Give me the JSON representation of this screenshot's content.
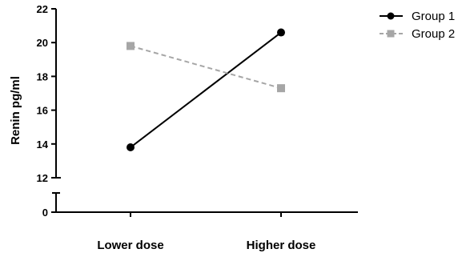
{
  "chart_data": {
    "type": "line",
    "categories": [
      "Lower dose",
      "Higher dose"
    ],
    "series": [
      {
        "name": "Group 1",
        "values": [
          13.8,
          20.6
        ],
        "color": "#000000",
        "line_style": "solid",
        "marker": "circle"
      },
      {
        "name": "Group 2",
        "values": [
          19.8,
          17.3
        ],
        "color": "#a6a6a6",
        "line_style": "dashed",
        "marker": "square"
      }
    ],
    "ylabel": "Renin pg/ml",
    "xlabel": "",
    "title": "",
    "yaxis": {
      "broken": true,
      "lower_segment": {
        "range": [
          0,
          1
        ],
        "ticks": [
          "0"
        ]
      },
      "upper_segment": {
        "range": [
          12,
          22
        ],
        "ticks": [
          "12",
          "14",
          "16",
          "18",
          "20",
          "22"
        ]
      }
    },
    "grid": false,
    "legend_position": "top-right"
  }
}
